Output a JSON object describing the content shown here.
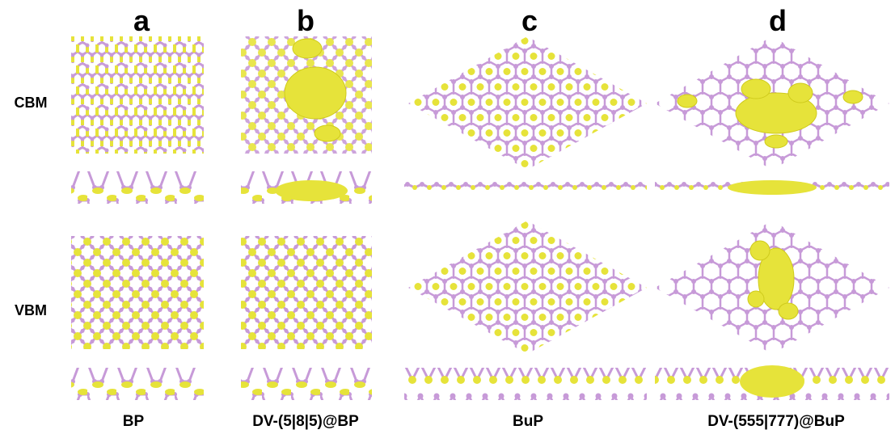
{
  "columns": [
    {
      "letter": "a",
      "label": "BP"
    },
    {
      "letter": "b",
      "label": "DV-(5|8|5)@BP"
    },
    {
      "letter": "c",
      "label": "BuP"
    },
    {
      "letter": "d",
      "label": "DV-(555|777)@BuP"
    }
  ],
  "rows": [
    "CBM",
    "VBM"
  ]
}
